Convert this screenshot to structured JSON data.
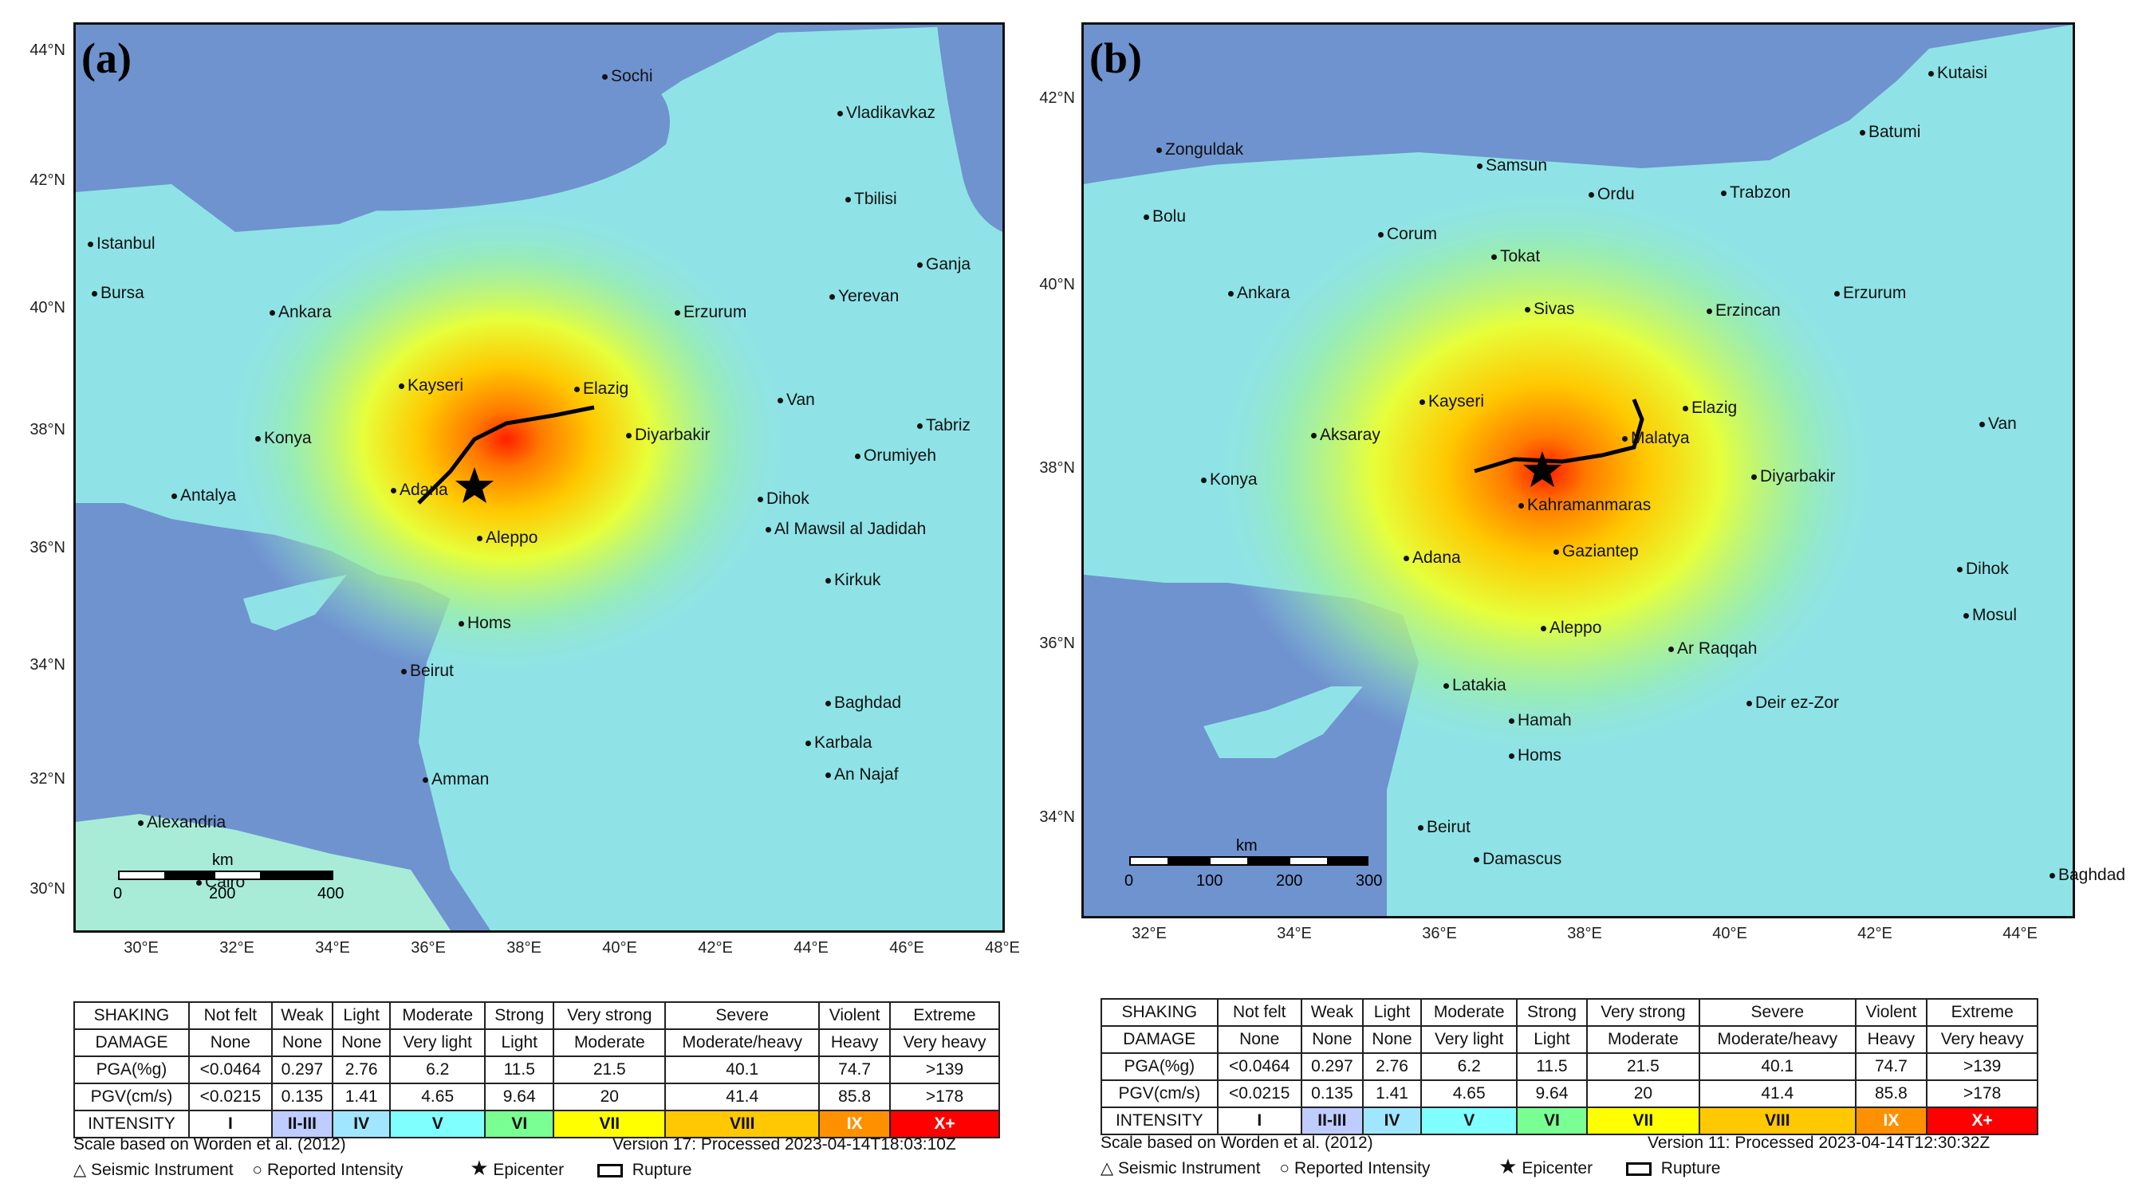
{
  "panels": [
    {
      "label": "(a)",
      "lat_labels": [
        "44°N",
        "42°N",
        "40°N",
        "38°N",
        "36°N",
        "34°N",
        "32°N",
        "30°N"
      ],
      "lon_labels": [
        "30°E",
        "32°E",
        "34°E",
        "36°E",
        "38°E",
        "40°E",
        "42°E",
        "44°E",
        "46°E",
        "48°E"
      ],
      "cities": [
        "Sochi",
        "Vladikavkaz",
        "Tbilisi",
        "Ganja",
        "Yerevan",
        "Istanbul",
        "Bursa",
        "Ankara",
        "Erzurum",
        "Kayseri",
        "Elazig",
        "Van",
        "Tabriz",
        "Konya",
        "Diyarbakir",
        "Orumiyeh",
        "Antalya",
        "Adana",
        "Dihok",
        "Al Mawsil al Jadidah",
        "Aleppo",
        "Kirkuk",
        "Homs",
        "Beirut",
        "Baghdad",
        "Karbala",
        "Amman",
        "An Najaf",
        "Alexandria",
        "Cairo"
      ],
      "scale": {
        "unit": "km",
        "ticks": [
          "0",
          "200",
          "400"
        ]
      },
      "legend": {
        "rows": [
          {
            "head": "SHAKING",
            "cells": [
              "Not felt",
              "Weak",
              "Light",
              "Moderate",
              "Strong",
              "Very strong",
              "Severe",
              "Violent",
              "Extreme"
            ]
          },
          {
            "head": "DAMAGE",
            "cells": [
              "None",
              "None",
              "None",
              "Very light",
              "Light",
              "Moderate",
              "Moderate/heavy",
              "Heavy",
              "Very heavy"
            ]
          },
          {
            "head": "PGA(%g)",
            "cells": [
              "<0.0464",
              "0.297",
              "2.76",
              "6.2",
              "11.5",
              "21.5",
              "40.1",
              "74.7",
              ">139"
            ]
          },
          {
            "head": "PGV(cm/s)",
            "cells": [
              "<0.0215",
              "0.135",
              "1.41",
              "4.65",
              "9.64",
              "20",
              "41.4",
              "85.8",
              ">178"
            ]
          },
          {
            "head": "INTENSITY",
            "cells": [
              "I",
              "II-III",
              "IV",
              "V",
              "VI",
              "VII",
              "VIII",
              "IX",
              "X+"
            ]
          }
        ],
        "scale_note": "Scale based on Worden et al. (2012)",
        "version": "Version 17: Processed 2023-04-14T18:03:10Z",
        "key_items": [
          "Seismic Instrument",
          "Reported Intensity",
          "Epicenter",
          "Rupture"
        ]
      }
    },
    {
      "label": "(b)",
      "lat_labels": [
        "42°N",
        "40°N",
        "38°N",
        "36°N",
        "34°N"
      ],
      "lon_labels": [
        "32°E",
        "34°E",
        "36°E",
        "38°E",
        "40°E",
        "42°E",
        "44°E"
      ],
      "cities": [
        "Kutaisi",
        "Zonguldak",
        "Batumi",
        "Samsun",
        "Bolu",
        "Ordu",
        "Trabzon",
        "Corum",
        "Tokat",
        "Ankara",
        "Erzurum",
        "Sivas",
        "Erzincan",
        "Kayseri",
        "Elazig",
        "Aksaray",
        "Malatya",
        "Van",
        "Konya",
        "Diyarbakir",
        "Kahramanmaras",
        "Adana",
        "Gaziantep",
        "Dihok",
        "Mosul",
        "Aleppo",
        "Ar Raqqah",
        "Latakia",
        "Deir ez-Zor",
        "Hamah",
        "Homs",
        "Beirut",
        "Damascus",
        "Baghdad"
      ],
      "scale": {
        "unit": "km",
        "ticks": [
          "0",
          "100",
          "200",
          "300"
        ]
      },
      "legend": {
        "rows": [
          {
            "head": "SHAKING",
            "cells": [
              "Not felt",
              "Weak",
              "Light",
              "Moderate",
              "Strong",
              "Very strong",
              "Severe",
              "Violent",
              "Extreme"
            ]
          },
          {
            "head": "DAMAGE",
            "cells": [
              "None",
              "None",
              "None",
              "Very light",
              "Light",
              "Moderate",
              "Moderate/heavy",
              "Heavy",
              "Very heavy"
            ]
          },
          {
            "head": "PGA(%g)",
            "cells": [
              "<0.0464",
              "0.297",
              "2.76",
              "6.2",
              "11.5",
              "21.5",
              "40.1",
              "74.7",
              ">139"
            ]
          },
          {
            "head": "PGV(cm/s)",
            "cells": [
              "<0.0215",
              "0.135",
              "1.41",
              "4.65",
              "9.64",
              "20",
              "41.4",
              "85.8",
              ">178"
            ]
          },
          {
            "head": "INTENSITY",
            "cells": [
              "I",
              "II-III",
              "IV",
              "V",
              "VI",
              "VII",
              "VIII",
              "IX",
              "X+"
            ]
          }
        ],
        "scale_note": "Scale based on Worden et al. (2012)",
        "version": "Version 11: Processed 2023-04-14T12:30:32Z",
        "key_items": [
          "Seismic Instrument",
          "Reported Intensity",
          "Epicenter",
          "Rupture"
        ]
      }
    }
  ],
  "intensity_colors": [
    "#ffffff",
    "#bfccff",
    "#a0e6ff",
    "#80ffff",
    "#7aff93",
    "#ffff00",
    "#ffc800",
    "#ff9100",
    "#ff0000"
  ],
  "colors": {
    "water": "#6f93cf",
    "land_low": "#8fe3e6",
    "land_mid": "#a6f0c0"
  }
}
